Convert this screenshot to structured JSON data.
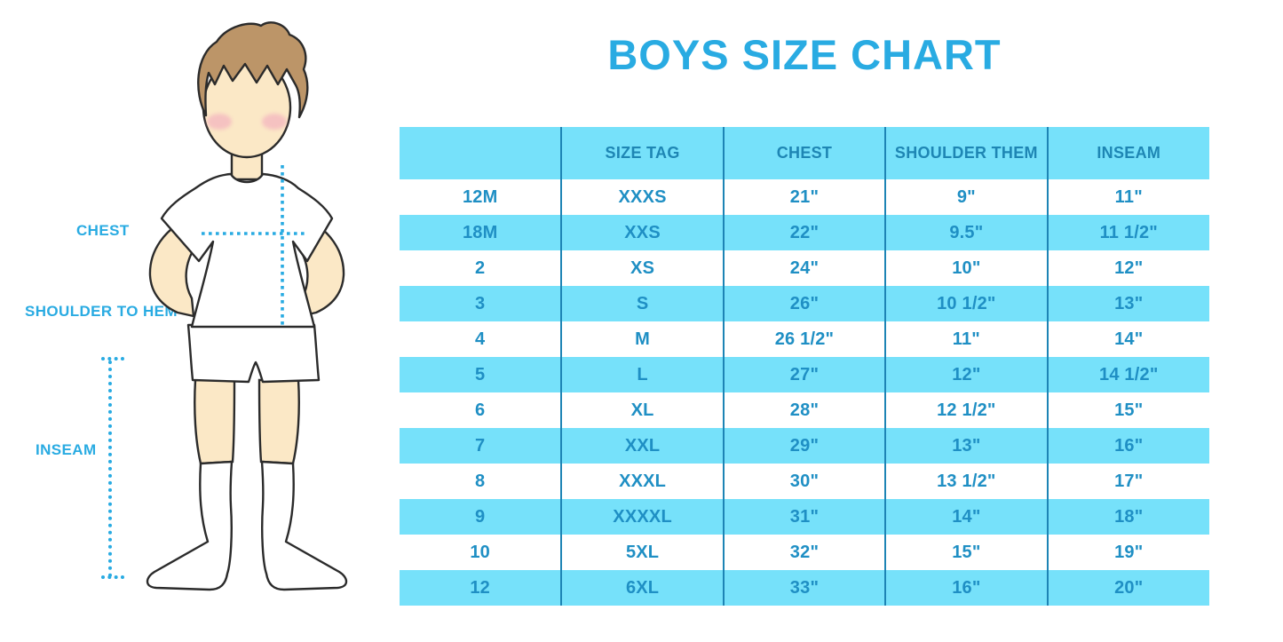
{
  "title": "BOYS SIZE CHART",
  "figure_labels": {
    "chest": "CHEST",
    "shoulder_to_hem": "SHOULDER TO HEM",
    "inseam": "INSEAM"
  },
  "chart_data": {
    "type": "table",
    "title": "BOYS SIZE CHART",
    "columns": [
      "",
      "SIZE TAG",
      "CHEST",
      "SHOULDER THEM",
      "INSEAM"
    ],
    "rows": [
      [
        "12M",
        "XXXS",
        "21\"",
        "9\"",
        "11\""
      ],
      [
        "18M",
        "XXS",
        "22\"",
        "9.5\"",
        "11 1/2\""
      ],
      [
        "2",
        "XS",
        "24\"",
        "10\"",
        "12\""
      ],
      [
        "3",
        "S",
        "26\"",
        "10 1/2\"",
        "13\""
      ],
      [
        "4",
        "M",
        "26 1/2\"",
        "11\"",
        "14\""
      ],
      [
        "5",
        "L",
        "27\"",
        "12\"",
        "14 1/2\""
      ],
      [
        "6",
        "XL",
        "28\"",
        "12 1/2\"",
        "15\""
      ],
      [
        "7",
        "XXL",
        "29\"",
        "13\"",
        "16\""
      ],
      [
        "8",
        "XXXL",
        "30\"",
        "13 1/2\"",
        "17\""
      ],
      [
        "9",
        "XXXXL",
        "31\"",
        "14\"",
        "18\""
      ],
      [
        "10",
        "5XL",
        "32\"",
        "15\"",
        "19\""
      ],
      [
        "12",
        "6XL",
        "33\"",
        "16\"",
        "20\""
      ]
    ],
    "layout": {
      "stripe_pattern": "header cyan, body rows alternate white/cyan starting white",
      "grid": "vertical column dividers only",
      "legend_position": "none"
    }
  },
  "colors": {
    "accent_blue": "#29ABE2",
    "stripe_cyan": "#76E1FA",
    "header_text_blue": "#1E86B4",
    "cell_text_blue": "#1F8FC4",
    "divider_blue": "#1D84B5",
    "skin": "#FBE8C6",
    "hair_brown": "#BC9568",
    "blush_pink": "#F2A9BE",
    "outline": "#2B2B2B"
  }
}
